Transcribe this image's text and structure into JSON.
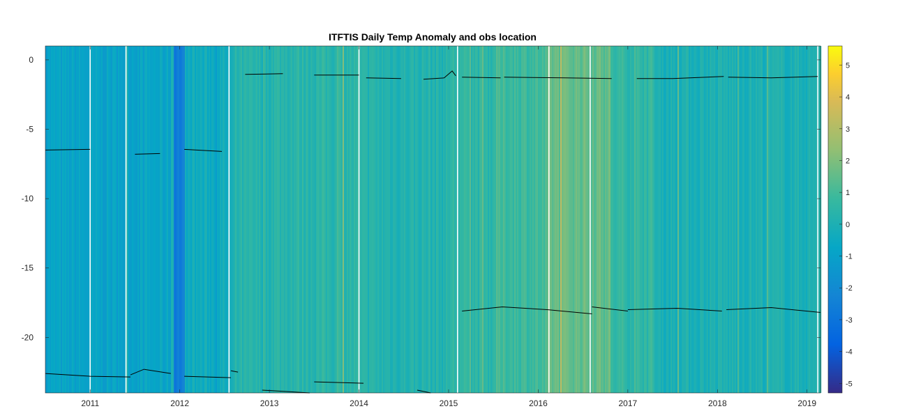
{
  "chart_data": {
    "type": "heatmap",
    "title": "ITFTIS Daily Temp Anomaly and obs location",
    "xlabel": "",
    "ylabel": "",
    "xlim": [
      2010.5,
      2019.15
    ],
    "ylim": [
      -24,
      1
    ],
    "x_ticks": [
      2011,
      2012,
      2013,
      2014,
      2015,
      2016,
      2017,
      2018,
      2019
    ],
    "x_tick_labels": [
      "2011",
      "2012",
      "2013",
      "2014",
      "2015",
      "2016",
      "2017",
      "2018",
      "2019"
    ],
    "y_ticks": [
      0,
      -5,
      -10,
      -15,
      -20
    ],
    "y_tick_labels": [
      "0",
      "-5",
      "-10",
      "-15",
      "-20"
    ],
    "colorbar": {
      "colormap": "parula",
      "clim": [
        -5.3,
        5.6
      ],
      "ticks": [
        5,
        4,
        3,
        2,
        1,
        0,
        -1,
        -2,
        -3,
        -4,
        -5
      ],
      "tick_labels": [
        "5",
        "4",
        "3",
        "2",
        "1",
        "0",
        "-1",
        "-2",
        "-3",
        "-4",
        "-5"
      ]
    },
    "anomaly_segments": [
      {
        "x": [
          2010.5,
          2011.4
        ],
        "value": -0.9
      },
      {
        "x": [
          2011.4,
          2011.9
        ],
        "value": -0.8
      },
      {
        "x": [
          2011.92,
          2012.05
        ],
        "value": -2.6
      },
      {
        "x": [
          2012.05,
          2012.6
        ],
        "value": -0.4
      },
      {
        "x": [
          2012.6,
          2013.0
        ],
        "value": 0.2
      },
      {
        "x": [
          2013.0,
          2014.0
        ],
        "value": 0.4
      },
      {
        "x": [
          2014.0,
          2015.0
        ],
        "value": 0.2
      },
      {
        "x": [
          2015.0,
          2015.5
        ],
        "value": 0.5
      },
      {
        "x": [
          2015.5,
          2016.1
        ],
        "value": 0.9
      },
      {
        "x": [
          2016.1,
          2016.8
        ],
        "value": 1.6
      },
      {
        "x": [
          2016.8,
          2017.3
        ],
        "value": 0.6
      },
      {
        "x": [
          2017.3,
          2019.15
        ],
        "value": 0.0
      }
    ],
    "gap_lines": [
      2011.0,
      2011.4,
      2012.55,
      2014.0,
      2015.1,
      2016.12,
      2016.58,
      2019.12
    ],
    "series": [
      {
        "values": [
          [
            2010.5,
            -6.5
          ],
          [
            2011.0,
            -6.45
          ]
        ]
      },
      {
        "values": [
          [
            2011.5,
            -6.8
          ],
          [
            2011.78,
            -6.75
          ]
        ]
      },
      {
        "values": [
          [
            2012.05,
            -6.45
          ],
          [
            2012.47,
            -6.6
          ]
        ]
      },
      {
        "values": [
          [
            2012.73,
            -1.05
          ],
          [
            2013.15,
            -1.0
          ]
        ]
      },
      {
        "values": [
          [
            2013.5,
            -1.1
          ],
          [
            2014.0,
            -1.1
          ]
        ]
      },
      {
        "values": [
          [
            2014.08,
            -1.3
          ],
          [
            2014.47,
            -1.35
          ]
        ]
      },
      {
        "values": [
          [
            2014.72,
            -1.4
          ],
          [
            2014.95,
            -1.3
          ],
          [
            2015.04,
            -0.8
          ],
          [
            2015.08,
            -1.15
          ]
        ]
      },
      {
        "values": [
          [
            2015.15,
            -1.25
          ],
          [
            2015.58,
            -1.3
          ]
        ]
      },
      {
        "values": [
          [
            2015.62,
            -1.25
          ],
          [
            2016.3,
            -1.3
          ],
          [
            2016.82,
            -1.35
          ]
        ]
      },
      {
        "values": [
          [
            2017.1,
            -1.35
          ],
          [
            2017.5,
            -1.35
          ],
          [
            2018.07,
            -1.2
          ]
        ]
      },
      {
        "values": [
          [
            2018.12,
            -1.25
          ],
          [
            2018.6,
            -1.3
          ],
          [
            2019.12,
            -1.2
          ]
        ]
      },
      {
        "values": [
          [
            2015.15,
            -18.1
          ],
          [
            2015.6,
            -17.8
          ],
          [
            2016.1,
            -18.0
          ],
          [
            2016.6,
            -18.3
          ]
        ]
      },
      {
        "values": [
          [
            2016.6,
            -17.8
          ],
          [
            2017.0,
            -18.1
          ]
        ]
      },
      {
        "values": [
          [
            2017.0,
            -18.0
          ],
          [
            2017.55,
            -17.9
          ],
          [
            2018.05,
            -18.1
          ]
        ]
      },
      {
        "values": [
          [
            2018.1,
            -18.0
          ],
          [
            2018.6,
            -17.85
          ],
          [
            2019.15,
            -18.2
          ]
        ]
      },
      {
        "values": [
          [
            2010.5,
            -22.6
          ],
          [
            2011.0,
            -22.8
          ],
          [
            2011.45,
            -22.85
          ]
        ]
      },
      {
        "values": [
          [
            2011.45,
            -22.7
          ],
          [
            2011.6,
            -22.3
          ],
          [
            2011.9,
            -22.6
          ]
        ]
      },
      {
        "values": [
          [
            2012.05,
            -22.8
          ],
          [
            2012.57,
            -22.9
          ]
        ]
      },
      {
        "values": [
          [
            2012.57,
            -22.4
          ],
          [
            2012.65,
            -22.5
          ]
        ]
      },
      {
        "values": [
          [
            2012.92,
            -23.8
          ],
          [
            2013.45,
            -24.0
          ]
        ]
      },
      {
        "values": [
          [
            2013.5,
            -23.2
          ],
          [
            2014.05,
            -23.3
          ]
        ]
      },
      {
        "values": [
          [
            2014.65,
            -23.8
          ],
          [
            2014.8,
            -24.0
          ]
        ]
      }
    ]
  }
}
